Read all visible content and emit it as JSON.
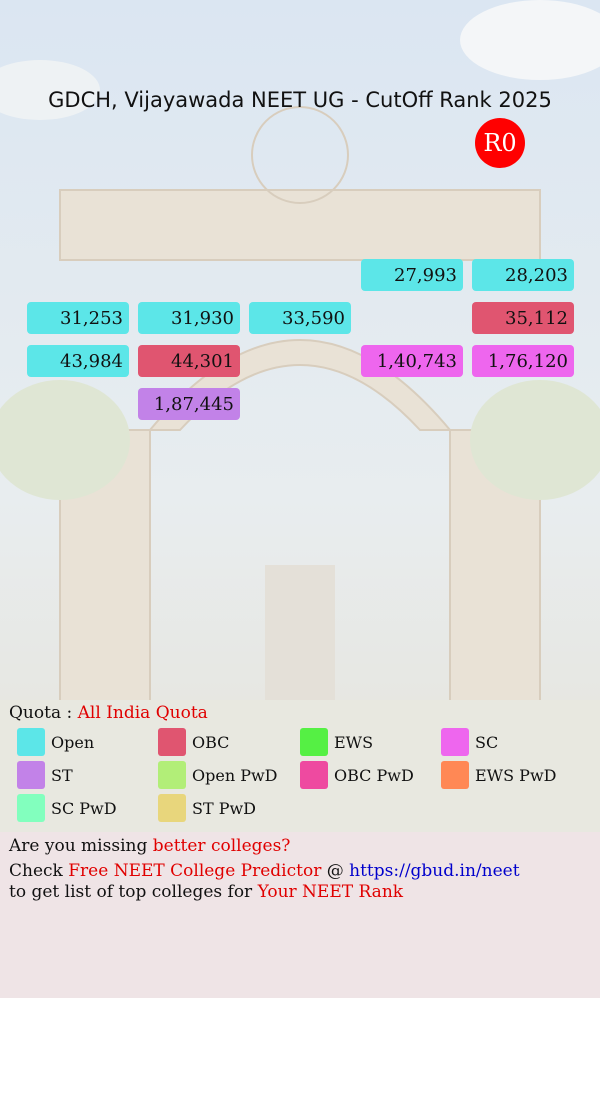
{
  "header": {
    "title": "GDCH, Vijayawada NEET UG - CutOff Rank 2025",
    "round": "R0"
  },
  "legend": [
    {
      "name": "Open",
      "color": "#5ce6e8"
    },
    {
      "name": "OBC",
      "color": "#e05570"
    },
    {
      "name": "EWS",
      "color": "#55f044"
    },
    {
      "name": "SC",
      "color": "#ee66ee"
    },
    {
      "name": "ST",
      "color": "#c282e8"
    },
    {
      "name": "Open PwD",
      "color": "#b2ee78"
    },
    {
      "name": "OBC PwD",
      "color": "#ee4aa0"
    },
    {
      "name": "EWS PwD",
      "color": "#ff8855"
    },
    {
      "name": "SC PwD",
      "color": "#82ffbe"
    },
    {
      "name": "ST PwD",
      "color": "#e8d67c"
    }
  ],
  "grid": [
    [
      null,
      null,
      null,
      {
        "rank": "27,993",
        "quota": 0
      },
      {
        "rank": "28,203",
        "quota": 0
      }
    ],
    [
      {
        "rank": "31,253",
        "quota": 0
      },
      {
        "rank": "31,930",
        "quota": 0
      },
      {
        "rank": "33,590",
        "quota": 0
      },
      null,
      {
        "rank": "35,112",
        "quota": 1
      }
    ],
    [
      {
        "rank": "43,984",
        "quota": 0
      },
      {
        "rank": "44,301",
        "quota": 1
      },
      null,
      {
        "rank": "1,40,743",
        "quota": 3
      },
      {
        "rank": "1,76,120",
        "quota": 3
      }
    ],
    [
      null,
      {
        "rank": "1,87,445",
        "quota": 4
      },
      null,
      null,
      null
    ]
  ],
  "quota": {
    "label": "Quota :",
    "value": "All India Quota"
  },
  "footer": {
    "line1": {
      "text": "Are you missing",
      "highlight": "better colleges?"
    },
    "line2": {
      "text": "Check",
      "highlight": "Free NEET College Predictor",
      "at": "@",
      "link": "https://gbud.in/neet"
    },
    "line3": {
      "text": "to get list of top colleges for",
      "highlight": "Your NEET Rank"
    }
  }
}
